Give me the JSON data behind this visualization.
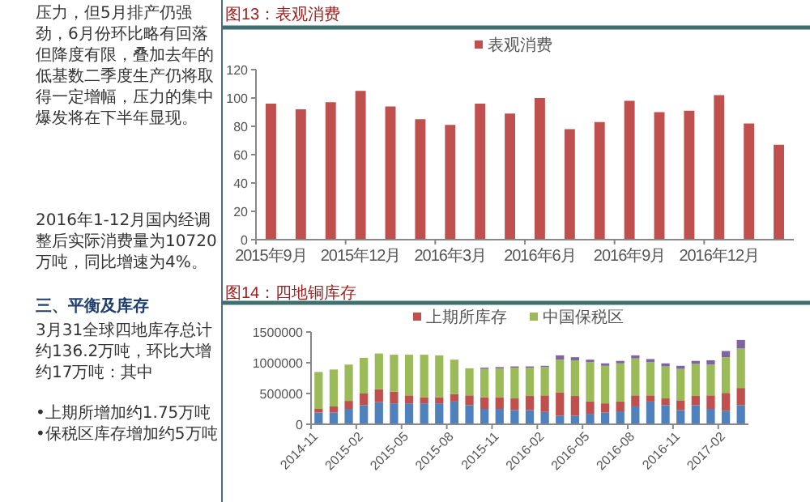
{
  "chart_data": [
    {
      "type": "other",
      "annotations": [
        "压力，但5月排产仍强劲，6月份环比略有回落但降度有限，叠加去年的低基数二季度生产仍将取得一定增幅，压力的集中爆发将在下半年显现。",
        "2016年1-12月国内经调整后实际消费量为10720万吨，同比增速为4%。"
      ]
    },
    {
      "type": "other",
      "title": "三、平衡及库存",
      "annotations": [
        "3月31全球四地库存总计约136.2万吨，环比大增约17万吨：其中",
        "•上期所增加约1.75万吨",
        "•保税区库存增加约5万吨"
      ]
    },
    {
      "type": "bar",
      "title": "图13：表观消费",
      "legend": "top",
      "categories": [
        "2015年9月",
        null,
        null,
        "2015年12月",
        null,
        null,
        "2016年3月",
        null,
        null,
        "2016年6月",
        null,
        null,
        "2016年9月",
        null,
        null,
        "2016年12月",
        null,
        null
      ],
      "series": [
        {
          "name": "表观消费",
          "color": "#c0504d",
          "values": [
            96,
            92,
            97,
            105,
            94,
            85,
            81,
            96,
            89,
            100,
            78,
            83,
            98,
            90,
            91,
            102,
            82,
            67
          ]
        }
      ],
      "ylim": [
        0,
        120
      ],
      "yticks": [
        0,
        20,
        40,
        60,
        80,
        100,
        120
      ]
    },
    {
      "type": "bar",
      "title": "图14：四地铜库存",
      "legend": "top",
      "stacked": true,
      "categories": [
        "2014-11",
        null,
        null,
        "2015-02",
        null,
        null,
        "2015-05",
        null,
        null,
        "2015-08",
        null,
        null,
        "2015-11",
        null,
        null,
        "2016-02",
        null,
        null,
        "2016-05",
        null,
        null,
        "2016-08",
        null,
        null,
        "2016-11",
        null,
        null,
        "2017-02",
        null
      ],
      "series": [
        {
          "color": "#4f81bd",
          "values": [
            190000,
            190000,
            250000,
            310000,
            360000,
            340000,
            340000,
            340000,
            340000,
            370000,
            310000,
            250000,
            250000,
            230000,
            230000,
            200000,
            140000,
            140000,
            170000,
            190000,
            210000,
            290000,
            370000,
            310000,
            230000,
            310000,
            250000,
            220000,
            310000
          ]
        },
        {
          "name": "上期所库存",
          "color": "#c0504d",
          "values": [
            60000,
            100000,
            130000,
            190000,
            210000,
            190000,
            130000,
            100000,
            100000,
            120000,
            160000,
            190000,
            190000,
            190000,
            230000,
            270000,
            380000,
            320000,
            200000,
            150000,
            160000,
            180000,
            100000,
            110000,
            160000,
            150000,
            220000,
            290000,
            280000
          ]
        },
        {
          "name": "中国保税区",
          "color": "#9bbb59",
          "values": [
            600000,
            600000,
            590000,
            580000,
            580000,
            600000,
            660000,
            690000,
            680000,
            560000,
            440000,
            460000,
            470000,
            500000,
            460000,
            460000,
            530000,
            580000,
            640000,
            610000,
            620000,
            600000,
            540000,
            520000,
            510000,
            520000,
            500000,
            580000,
            640000
          ]
        },
        {
          "color": "#8064a2",
          "values": [
            null,
            null,
            null,
            null,
            null,
            null,
            null,
            null,
            null,
            null,
            null,
            20000,
            20000,
            20000,
            20000,
            20000,
            70000,
            50000,
            40000,
            40000,
            40000,
            50000,
            50000,
            50000,
            50000,
            50000,
            70000,
            100000,
            140000
          ]
        }
      ],
      "ylim": [
        0,
        1500000
      ],
      "yticks": [
        0,
        500000,
        1000000,
        1500000
      ]
    }
  ]
}
